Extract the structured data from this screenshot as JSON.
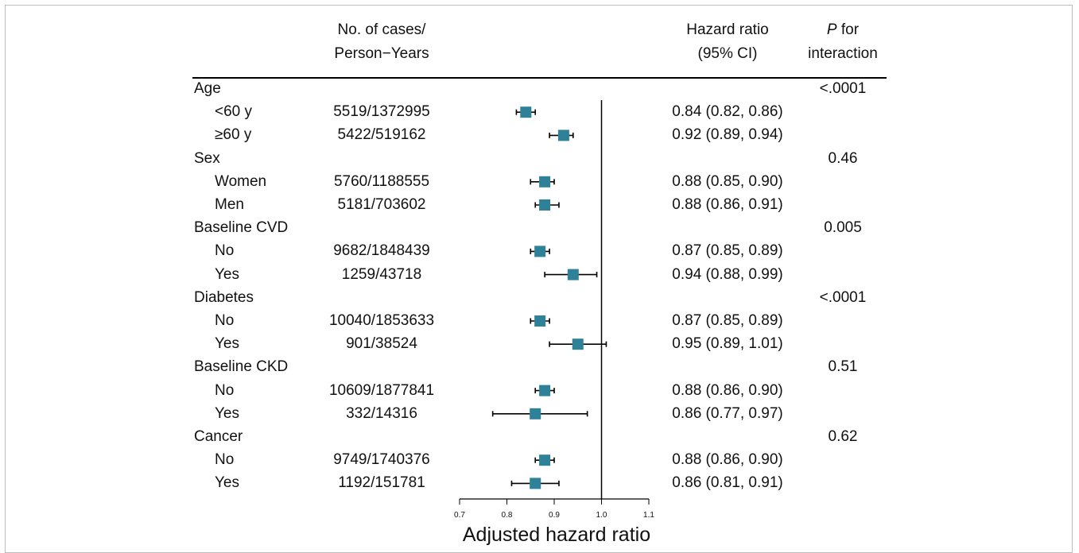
{
  "headers": {
    "cases_line1": "No. of cases/",
    "cases_line2": "Person−Years",
    "hr_line1": "Hazard ratio",
    "hr_line2": "(95% CI)",
    "p_line1_italic": "P",
    "p_line1_rest": " for",
    "p_line2": "interaction"
  },
  "colors": {
    "marker": "#2e8196",
    "line": "#000000",
    "frame": "#bdbdbd"
  },
  "rows": [
    {
      "label": "Age",
      "group": true,
      "p": "<.0001"
    },
    {
      "label": "<60 y",
      "cases": "5519/1372995",
      "hr_text": "0.84 (0.82, 0.86)"
    },
    {
      "label": "≥60 y",
      "cases": "5422/519162",
      "hr_text": "0.92 (0.89, 0.94)"
    },
    {
      "label": "Sex",
      "group": true,
      "p": "0.46"
    },
    {
      "label": "Women",
      "cases": "5760/1188555",
      "hr_text": "0.88 (0.85, 0.90)"
    },
    {
      "label": "Men",
      "cases": "5181/703602",
      "hr_text": "0.88 (0.86, 0.91)"
    },
    {
      "label": "Baseline CVD",
      "group": true,
      "p": "0.005"
    },
    {
      "label": "No",
      "cases": "9682/1848439",
      "hr_text": "0.87 (0.85, 0.89)"
    },
    {
      "label": "Yes",
      "cases": "1259/43718",
      "hr_text": "0.94 (0.88, 0.99)"
    },
    {
      "label": "Diabetes",
      "group": true,
      "p": "<.0001"
    },
    {
      "label": "No",
      "cases": "10040/1853633",
      "hr_text": "0.87 (0.85, 0.89)"
    },
    {
      "label": "Yes",
      "cases": "901/38524",
      "hr_text": "0.95 (0.89, 1.01)"
    },
    {
      "label": "Baseline CKD",
      "group": true,
      "p": "0.51"
    },
    {
      "label": "No",
      "cases": "10609/1877841",
      "hr_text": "0.88 (0.86, 0.90)"
    },
    {
      "label": "Yes",
      "cases": "332/14316",
      "hr_text": "0.86 (0.77, 0.97)"
    },
    {
      "label": "Cancer",
      "group": true,
      "p": "0.62"
    },
    {
      "label": "No",
      "cases": "9749/1740376",
      "hr_text": "0.88 (0.86, 0.90)"
    },
    {
      "label": "Yes",
      "cases": "1192/151781",
      "hr_text": "0.86 (0.81, 0.91)"
    }
  ],
  "chart_data": {
    "type": "forest",
    "xlabel": "Adjusted hazard ratio",
    "xlim": [
      0.7,
      1.1
    ],
    "xticks": [
      "0.7",
      "0.8",
      "0.9",
      "1.0",
      "1.1"
    ],
    "reference_line": 1.0,
    "points": [
      {
        "label": "<60 y",
        "hr": 0.84,
        "lo": 0.82,
        "hi": 0.86
      },
      {
        "label": "≥60 y",
        "hr": 0.92,
        "lo": 0.89,
        "hi": 0.94
      },
      {
        "label": "Women",
        "hr": 0.88,
        "lo": 0.85,
        "hi": 0.9
      },
      {
        "label": "Men",
        "hr": 0.88,
        "lo": 0.86,
        "hi": 0.91
      },
      {
        "label": "Baseline CVD: No",
        "hr": 0.87,
        "lo": 0.85,
        "hi": 0.89
      },
      {
        "label": "Baseline CVD: Yes",
        "hr": 0.94,
        "lo": 0.88,
        "hi": 0.99
      },
      {
        "label": "Diabetes: No",
        "hr": 0.87,
        "lo": 0.85,
        "hi": 0.89
      },
      {
        "label": "Diabetes: Yes",
        "hr": 0.95,
        "lo": 0.89,
        "hi": 1.01
      },
      {
        "label": "Baseline CKD: No",
        "hr": 0.88,
        "lo": 0.86,
        "hi": 0.9
      },
      {
        "label": "Baseline CKD: Yes",
        "hr": 0.86,
        "lo": 0.77,
        "hi": 0.97
      },
      {
        "label": "Cancer: No",
        "hr": 0.88,
        "lo": 0.86,
        "hi": 0.9
      },
      {
        "label": "Cancer: Yes",
        "hr": 0.86,
        "lo": 0.81,
        "hi": 0.91
      }
    ]
  }
}
